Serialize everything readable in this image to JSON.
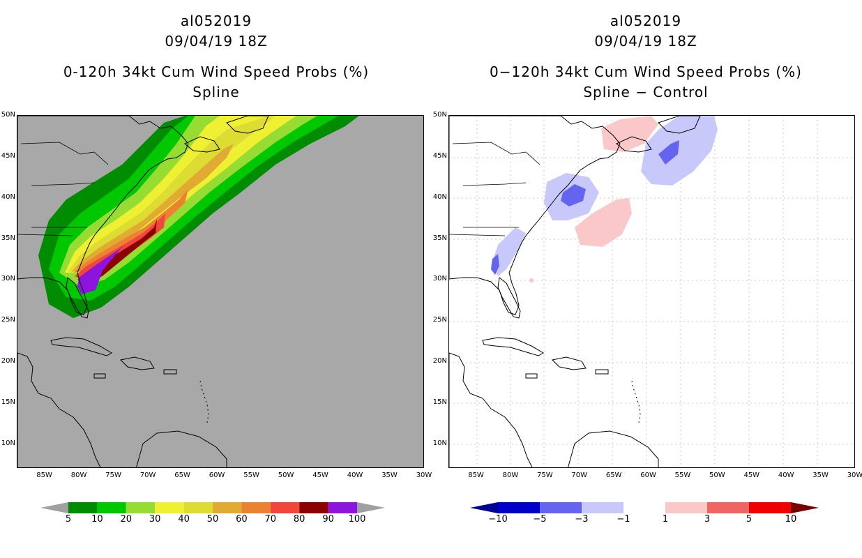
{
  "left_panel": {
    "storm_id": "al052019",
    "datetime": "09/04/19 18Z",
    "product": "0-120h 34kt Cum Wind Speed Probs (%)",
    "method": "Spline"
  },
  "right_panel": {
    "storm_id": "al052019",
    "datetime": "09/04/19 18Z",
    "product": "0−120h 34kt Cum Wind Speed Probs (%)",
    "method": "Spline − Control"
  },
  "axes": {
    "lat_labels": [
      "50N",
      "45N",
      "40N",
      "35N",
      "30N",
      "25N",
      "20N",
      "15N",
      "10N"
    ],
    "lat_values": [
      50,
      45,
      40,
      35,
      30,
      25,
      20,
      15,
      10
    ],
    "lon_labels": [
      "85W",
      "80W",
      "75W",
      "70W",
      "65W",
      "60W",
      "55W",
      "50W",
      "45W",
      "40W",
      "35W",
      "30W"
    ],
    "lon_values": [
      -85,
      -80,
      -75,
      -70,
      -65,
      -60,
      -55,
      -50,
      -45,
      -40,
      -35,
      -30
    ],
    "lat_range": [
      7,
      50
    ],
    "lon_range": [
      -89,
      -30
    ]
  },
  "left_colorbar": {
    "labels": [
      "5",
      "10",
      "20",
      "30",
      "40",
      "50",
      "60",
      "70",
      "80",
      "90",
      "100"
    ],
    "colors": [
      "#008c00",
      "#00c800",
      "#96dc32",
      "#f0f032",
      "#dcdc32",
      "#e1aa32",
      "#eb8232",
      "#f0463c",
      "#8c0000",
      "#8c14dc"
    ],
    "end_color": "#a0a0a0"
  },
  "right_colorbar": {
    "labels": [
      "−10",
      "−5",
      "−3",
      "−1",
      "1",
      "3",
      "5",
      "10"
    ],
    "colors": [
      "#0000c8",
      "#6464f0",
      "#c8c8fa",
      "#ffffff",
      "#fac8c8",
      "#f06464",
      "#f00000"
    ],
    "low_end": "#000096",
    "high_end": "#780000"
  },
  "colors": {
    "map_background_left": "#a8a8a8",
    "map_background_right": "#ffffff",
    "coastline": "#000000",
    "grid": "#c8c8c8"
  }
}
